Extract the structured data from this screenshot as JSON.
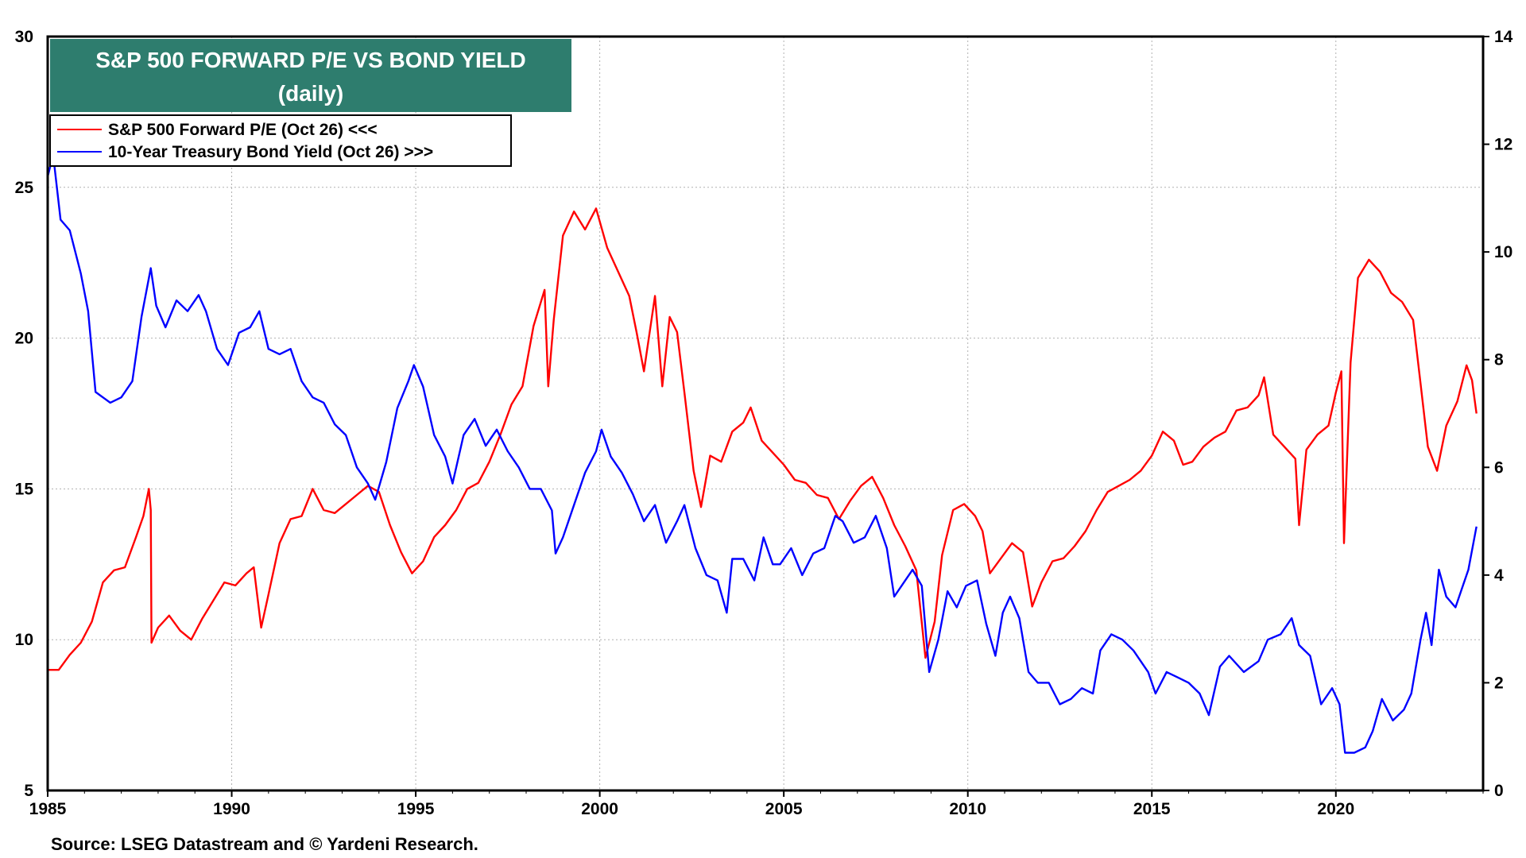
{
  "chart_data": {
    "type": "line",
    "title": "S&P 500 FORWARD P/E VS BOND YIELD",
    "subtitle": "(daily)",
    "source": "Source: LSEG Datastream and © Yardeni Research.",
    "title_box_color": "#2e7d6e",
    "grid": true,
    "legend_position": "top-left",
    "x_axis": {
      "range": [
        1985,
        2024
      ],
      "ticks": [
        "1985",
        "1990",
        "1995",
        "2000",
        "2005",
        "2010",
        "2015",
        "2020"
      ]
    },
    "y_left": {
      "range": [
        5,
        30
      ],
      "ticks": [
        "30",
        "25",
        "20",
        "15",
        "10",
        "5"
      ]
    },
    "y_right": {
      "range": [
        0,
        14
      ],
      "ticks": [
        "14",
        "12",
        "10",
        "8",
        "6",
        "4",
        "2",
        "0"
      ]
    },
    "series": [
      {
        "name": "S&P 500 Forward P/E (Oct 26) <<<",
        "axis": "left",
        "color": "#ff0000",
        "points": [
          [
            1985.0,
            9.0
          ],
          [
            1985.3,
            9.0
          ],
          [
            1985.6,
            9.5
          ],
          [
            1985.9,
            9.9
          ],
          [
            1986.2,
            10.6
          ],
          [
            1986.5,
            11.9
          ],
          [
            1986.8,
            12.3
          ],
          [
            1987.1,
            12.4
          ],
          [
            1987.4,
            13.4
          ],
          [
            1987.6,
            14.1
          ],
          [
            1987.75,
            15.0
          ],
          [
            1987.8,
            14.3
          ],
          [
            1987.82,
            9.9
          ],
          [
            1988.0,
            10.4
          ],
          [
            1988.3,
            10.8
          ],
          [
            1988.6,
            10.3
          ],
          [
            1988.9,
            10.0
          ],
          [
            1989.2,
            10.7
          ],
          [
            1989.5,
            11.3
          ],
          [
            1989.8,
            11.9
          ],
          [
            1990.1,
            11.8
          ],
          [
            1990.4,
            12.2
          ],
          [
            1990.6,
            12.4
          ],
          [
            1990.8,
            10.4
          ],
          [
            1991.0,
            11.5
          ],
          [
            1991.3,
            13.2
          ],
          [
            1991.6,
            14.0
          ],
          [
            1991.9,
            14.1
          ],
          [
            1992.2,
            15.0
          ],
          [
            1992.5,
            14.3
          ],
          [
            1992.8,
            14.2
          ],
          [
            1993.1,
            14.5
          ],
          [
            1993.4,
            14.8
          ],
          [
            1993.7,
            15.1
          ],
          [
            1994.0,
            14.9
          ],
          [
            1994.3,
            13.8
          ],
          [
            1994.6,
            12.9
          ],
          [
            1994.9,
            12.2
          ],
          [
            1995.2,
            12.6
          ],
          [
            1995.5,
            13.4
          ],
          [
            1995.8,
            13.8
          ],
          [
            1996.1,
            14.3
          ],
          [
            1996.4,
            15.0
          ],
          [
            1996.7,
            15.2
          ],
          [
            1997.0,
            15.9
          ],
          [
            1997.3,
            16.8
          ],
          [
            1997.6,
            17.8
          ],
          [
            1997.9,
            18.4
          ],
          [
            1998.2,
            20.4
          ],
          [
            1998.5,
            21.6
          ],
          [
            1998.6,
            18.4
          ],
          [
            1998.75,
            20.6
          ],
          [
            1999.0,
            23.4
          ],
          [
            1999.3,
            24.2
          ],
          [
            1999.6,
            23.6
          ],
          [
            1999.9,
            24.3
          ],
          [
            2000.2,
            23.0
          ],
          [
            2000.5,
            22.2
          ],
          [
            2000.8,
            21.4
          ],
          [
            2001.0,
            20.2
          ],
          [
            2001.2,
            18.9
          ],
          [
            2001.5,
            21.4
          ],
          [
            2001.7,
            18.4
          ],
          [
            2001.9,
            20.7
          ],
          [
            2002.1,
            20.2
          ],
          [
            2002.3,
            18.2
          ],
          [
            2002.55,
            15.6
          ],
          [
            2002.75,
            14.4
          ],
          [
            2003.0,
            16.1
          ],
          [
            2003.3,
            15.9
          ],
          [
            2003.6,
            16.9
          ],
          [
            2003.9,
            17.2
          ],
          [
            2004.1,
            17.7
          ],
          [
            2004.4,
            16.6
          ],
          [
            2004.7,
            16.2
          ],
          [
            2005.0,
            15.8
          ],
          [
            2005.3,
            15.3
          ],
          [
            2005.6,
            15.2
          ],
          [
            2005.9,
            14.8
          ],
          [
            2006.2,
            14.7
          ],
          [
            2006.5,
            14.0
          ],
          [
            2006.8,
            14.6
          ],
          [
            2007.1,
            15.1
          ],
          [
            2007.4,
            15.4
          ],
          [
            2007.7,
            14.7
          ],
          [
            2008.0,
            13.8
          ],
          [
            2008.3,
            13.1
          ],
          [
            2008.6,
            12.3
          ],
          [
            2008.85,
            9.4
          ],
          [
            2009.1,
            10.6
          ],
          [
            2009.3,
            12.8
          ],
          [
            2009.6,
            14.3
          ],
          [
            2009.9,
            14.5
          ],
          [
            2010.2,
            14.1
          ],
          [
            2010.4,
            13.6
          ],
          [
            2010.6,
            12.2
          ],
          [
            2010.9,
            12.7
          ],
          [
            2011.2,
            13.2
          ],
          [
            2011.5,
            12.9
          ],
          [
            2011.75,
            11.1
          ],
          [
            2012.0,
            11.9
          ],
          [
            2012.3,
            12.6
          ],
          [
            2012.6,
            12.7
          ],
          [
            2012.9,
            13.1
          ],
          [
            2013.2,
            13.6
          ],
          [
            2013.5,
            14.3
          ],
          [
            2013.8,
            14.9
          ],
          [
            2014.1,
            15.1
          ],
          [
            2014.4,
            15.3
          ],
          [
            2014.7,
            15.6
          ],
          [
            2015.0,
            16.1
          ],
          [
            2015.3,
            16.9
          ],
          [
            2015.6,
            16.6
          ],
          [
            2015.85,
            15.8
          ],
          [
            2016.1,
            15.9
          ],
          [
            2016.4,
            16.4
          ],
          [
            2016.7,
            16.7
          ],
          [
            2017.0,
            16.9
          ],
          [
            2017.3,
            17.6
          ],
          [
            2017.6,
            17.7
          ],
          [
            2017.9,
            18.1
          ],
          [
            2018.05,
            18.7
          ],
          [
            2018.3,
            16.8
          ],
          [
            2018.6,
            16.4
          ],
          [
            2018.9,
            16.0
          ],
          [
            2019.0,
            13.8
          ],
          [
            2019.2,
            16.3
          ],
          [
            2019.5,
            16.8
          ],
          [
            2019.8,
            17.1
          ],
          [
            2020.0,
            18.2
          ],
          [
            2020.15,
            18.9
          ],
          [
            2020.22,
            13.2
          ],
          [
            2020.4,
            19.2
          ],
          [
            2020.6,
            22.0
          ],
          [
            2020.9,
            22.6
          ],
          [
            2021.2,
            22.2
          ],
          [
            2021.5,
            21.5
          ],
          [
            2021.8,
            21.2
          ],
          [
            2022.1,
            20.6
          ],
          [
            2022.3,
            18.5
          ],
          [
            2022.5,
            16.4
          ],
          [
            2022.75,
            15.6
          ],
          [
            2023.0,
            17.1
          ],
          [
            2023.3,
            17.9
          ],
          [
            2023.55,
            19.1
          ],
          [
            2023.7,
            18.6
          ],
          [
            2023.82,
            17.5
          ]
        ]
      },
      {
        "name": "10-Year Treasury Bond Yield (Oct 26) >>>",
        "axis": "right",
        "color": "#0000ff",
        "points": [
          [
            1985.0,
            11.4
          ],
          [
            1985.15,
            11.8
          ],
          [
            1985.35,
            10.6
          ],
          [
            1985.6,
            10.4
          ],
          [
            1985.9,
            9.6
          ],
          [
            1986.1,
            8.9
          ],
          [
            1986.3,
            7.4
          ],
          [
            1986.5,
            7.3
          ],
          [
            1986.7,
            7.2
          ],
          [
            1987.0,
            7.3
          ],
          [
            1987.3,
            7.6
          ],
          [
            1987.55,
            8.8
          ],
          [
            1987.8,
            9.7
          ],
          [
            1987.95,
            9.0
          ],
          [
            1988.2,
            8.6
          ],
          [
            1988.5,
            9.1
          ],
          [
            1988.8,
            8.9
          ],
          [
            1989.1,
            9.2
          ],
          [
            1989.3,
            8.9
          ],
          [
            1989.6,
            8.2
          ],
          [
            1989.9,
            7.9
          ],
          [
            1990.2,
            8.5
          ],
          [
            1990.5,
            8.6
          ],
          [
            1990.75,
            8.9
          ],
          [
            1991.0,
            8.2
          ],
          [
            1991.3,
            8.1
          ],
          [
            1991.6,
            8.2
          ],
          [
            1991.9,
            7.6
          ],
          [
            1992.2,
            7.3
          ],
          [
            1992.5,
            7.2
          ],
          [
            1992.8,
            6.8
          ],
          [
            1993.1,
            6.6
          ],
          [
            1993.4,
            6.0
          ],
          [
            1993.7,
            5.7
          ],
          [
            1993.9,
            5.4
          ],
          [
            1994.2,
            6.1
          ],
          [
            1994.5,
            7.1
          ],
          [
            1994.8,
            7.6
          ],
          [
            1994.95,
            7.9
          ],
          [
            1995.2,
            7.5
          ],
          [
            1995.5,
            6.6
          ],
          [
            1995.8,
            6.2
          ],
          [
            1996.0,
            5.7
          ],
          [
            1996.3,
            6.6
          ],
          [
            1996.6,
            6.9
          ],
          [
            1996.9,
            6.4
          ],
          [
            1997.2,
            6.7
          ],
          [
            1997.5,
            6.3
          ],
          [
            1997.8,
            6.0
          ],
          [
            1998.1,
            5.6
          ],
          [
            1998.4,
            5.6
          ],
          [
            1998.7,
            5.2
          ],
          [
            1998.8,
            4.4
          ],
          [
            1999.0,
            4.7
          ],
          [
            1999.3,
            5.3
          ],
          [
            1999.6,
            5.9
          ],
          [
            1999.9,
            6.3
          ],
          [
            2000.05,
            6.7
          ],
          [
            2000.3,
            6.2
          ],
          [
            2000.6,
            5.9
          ],
          [
            2000.9,
            5.5
          ],
          [
            2001.2,
            5.0
          ],
          [
            2001.5,
            5.3
          ],
          [
            2001.8,
            4.6
          ],
          [
            2002.1,
            5.0
          ],
          [
            2002.3,
            5.3
          ],
          [
            2002.6,
            4.5
          ],
          [
            2002.9,
            4.0
          ],
          [
            2003.2,
            3.9
          ],
          [
            2003.45,
            3.3
          ],
          [
            2003.6,
            4.3
          ],
          [
            2003.9,
            4.3
          ],
          [
            2004.2,
            3.9
          ],
          [
            2004.45,
            4.7
          ],
          [
            2004.7,
            4.2
          ],
          [
            2004.9,
            4.2
          ],
          [
            2005.2,
            4.5
          ],
          [
            2005.5,
            4.0
          ],
          [
            2005.8,
            4.4
          ],
          [
            2006.1,
            4.5
          ],
          [
            2006.4,
            5.1
          ],
          [
            2006.6,
            5.0
          ],
          [
            2006.9,
            4.6
          ],
          [
            2007.2,
            4.7
          ],
          [
            2007.5,
            5.1
          ],
          [
            2007.8,
            4.5
          ],
          [
            2008.0,
            3.6
          ],
          [
            2008.3,
            3.9
          ],
          [
            2008.5,
            4.1
          ],
          [
            2008.75,
            3.8
          ],
          [
            2008.95,
            2.2
          ],
          [
            2009.2,
            2.8
          ],
          [
            2009.45,
            3.7
          ],
          [
            2009.7,
            3.4
          ],
          [
            2009.95,
            3.8
          ],
          [
            2010.25,
            3.9
          ],
          [
            2010.5,
            3.1
          ],
          [
            2010.75,
            2.5
          ],
          [
            2010.95,
            3.3
          ],
          [
            2011.15,
            3.6
          ],
          [
            2011.4,
            3.2
          ],
          [
            2011.65,
            2.2
          ],
          [
            2011.9,
            2.0
          ],
          [
            2012.2,
            2.0
          ],
          [
            2012.5,
            1.6
          ],
          [
            2012.8,
            1.7
          ],
          [
            2013.1,
            1.9
          ],
          [
            2013.4,
            1.8
          ],
          [
            2013.6,
            2.6
          ],
          [
            2013.9,
            2.9
          ],
          [
            2014.2,
            2.8
          ],
          [
            2014.5,
            2.6
          ],
          [
            2014.9,
            2.2
          ],
          [
            2015.1,
            1.8
          ],
          [
            2015.4,
            2.2
          ],
          [
            2015.7,
            2.1
          ],
          [
            2016.0,
            2.0
          ],
          [
            2016.3,
            1.8
          ],
          [
            2016.55,
            1.4
          ],
          [
            2016.85,
            2.3
          ],
          [
            2017.1,
            2.5
          ],
          [
            2017.5,
            2.2
          ],
          [
            2017.9,
            2.4
          ],
          [
            2018.15,
            2.8
          ],
          [
            2018.5,
            2.9
          ],
          [
            2018.8,
            3.2
          ],
          [
            2019.0,
            2.7
          ],
          [
            2019.3,
            2.5
          ],
          [
            2019.6,
            1.6
          ],
          [
            2019.9,
            1.9
          ],
          [
            2020.1,
            1.6
          ],
          [
            2020.25,
            0.7
          ],
          [
            2020.5,
            0.7
          ],
          [
            2020.8,
            0.8
          ],
          [
            2021.0,
            1.1
          ],
          [
            2021.25,
            1.7
          ],
          [
            2021.55,
            1.3
          ],
          [
            2021.85,
            1.5
          ],
          [
            2022.05,
            1.8
          ],
          [
            2022.3,
            2.8
          ],
          [
            2022.45,
            3.3
          ],
          [
            2022.6,
            2.7
          ],
          [
            2022.8,
            4.1
          ],
          [
            2023.0,
            3.6
          ],
          [
            2023.25,
            3.4
          ],
          [
            2023.4,
            3.7
          ],
          [
            2023.6,
            4.1
          ],
          [
            2023.82,
            4.9
          ]
        ]
      }
    ]
  }
}
